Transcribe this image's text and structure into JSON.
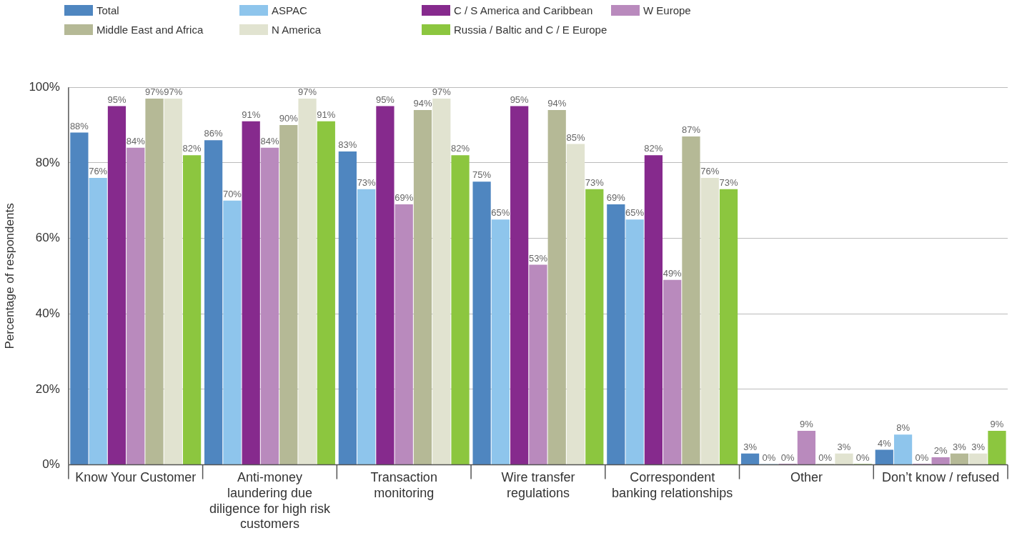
{
  "chart_data": {
    "type": "bar",
    "ylabel": "Percentage of respondents",
    "categories": [
      "Know Your Customer",
      "Anti-money laundering due diligence for high risk customers",
      "Transaction monitoring",
      "Wire transfer regulations",
      "Correspondent banking relationships",
      "Other",
      "Don’t know / refused"
    ],
    "series": [
      {
        "name": "Total",
        "color": "#4f86c0",
        "values": [
          88,
          86,
          83,
          75,
          69,
          3,
          4
        ],
        "value_labels": [
          "88%",
          "86%",
          "83%",
          "75%",
          "69%",
          "3%",
          "4%"
        ]
      },
      {
        "name": "ASPAC",
        "color": "#8ec5ec",
        "values": [
          76,
          70,
          73,
          65,
          65,
          0,
          8
        ],
        "value_labels": [
          "76%",
          "70%",
          "73%",
          "65%",
          "65%",
          "0%",
          "8%"
        ]
      },
      {
        "name": "C / S America and Caribbean",
        "color": "#862a8d",
        "values": [
          95,
          91,
          95,
          95,
          82,
          0,
          0
        ],
        "value_labels": [
          "95%",
          "91%",
          "95%",
          "95%",
          "82%",
          "0%",
          "0%"
        ]
      },
      {
        "name": "W Europe",
        "color": "#b98abd",
        "values": [
          84,
          84,
          69,
          53,
          49,
          9,
          2
        ],
        "value_labels": [
          "84%",
          "84%",
          "69%",
          "53%",
          "49%",
          "9%",
          "2%"
        ]
      },
      {
        "name": "Middle East and Africa",
        "color": "#b5b996",
        "values": [
          97,
          90,
          94,
          94,
          87,
          0,
          3
        ],
        "value_labels": [
          "97%",
          "90%",
          "94%",
          "94%",
          "87%",
          "0%",
          "3%"
        ]
      },
      {
        "name": "N America",
        "color": "#e1e3d0",
        "values": [
          97,
          97,
          97,
          85,
          76,
          3,
          3
        ],
        "value_labels": [
          "97%",
          "97%",
          "97%",
          "85%",
          "76%",
          "3%",
          "3%"
        ]
      },
      {
        "name": "Russia / Baltic and C / E Europe",
        "color": "#8cc63f",
        "values": [
          82,
          91,
          82,
          73,
          73,
          0,
          9
        ],
        "value_labels": [
          "82%",
          "91%",
          "82%",
          "73%",
          "73%",
          "0%",
          "9%"
        ]
      }
    ],
    "ylim": [
      0,
      100
    ],
    "yticks": [
      {
        "value": 0,
        "label": "0%"
      },
      {
        "value": 20,
        "label": "20%"
      },
      {
        "value": 40,
        "label": "40%"
      },
      {
        "value": 60,
        "label": "60%"
      },
      {
        "value": 80,
        "label": "80%"
      },
      {
        "value": 100,
        "label": "100%"
      }
    ],
    "grid": "y",
    "legend": "top left"
  }
}
